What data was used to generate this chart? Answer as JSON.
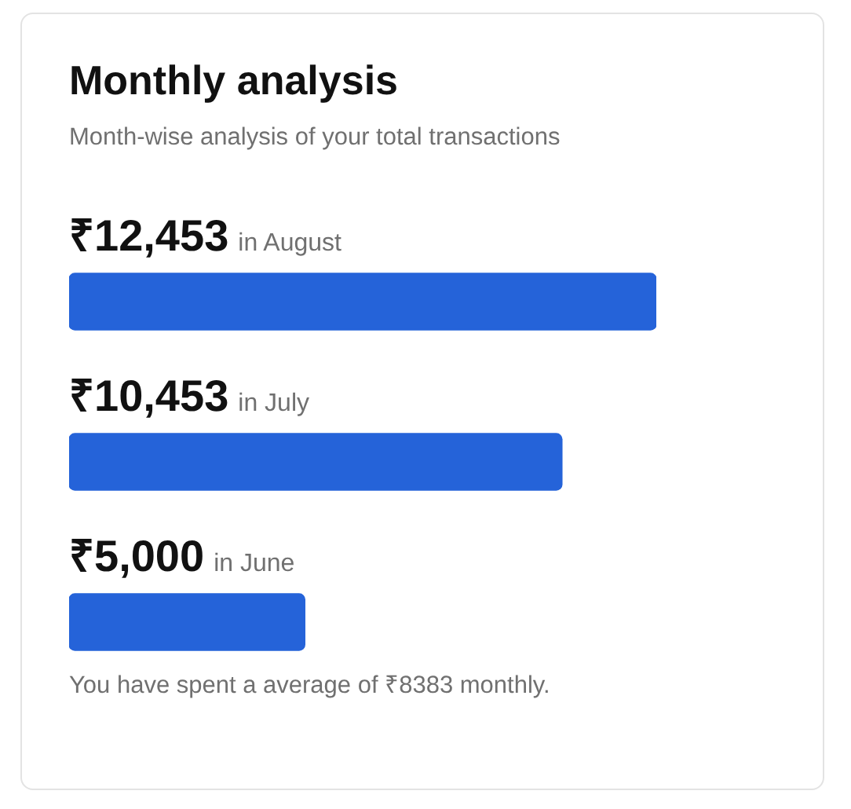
{
  "chart_data": {
    "type": "bar",
    "orientation": "horizontal",
    "title": "Monthly analysis",
    "subtitle": "Month-wise analysis of your total transactions",
    "categories": [
      "in August",
      "in July",
      "in June"
    ],
    "values": [
      12453,
      10453,
      5000
    ],
    "value_labels": [
      "₹12,453",
      "₹10,453",
      "₹5,000"
    ],
    "color": "#2563d9",
    "tick_labels": false,
    "annotations": [
      "You have spent a average of ₹8383 monthly."
    ]
  }
}
